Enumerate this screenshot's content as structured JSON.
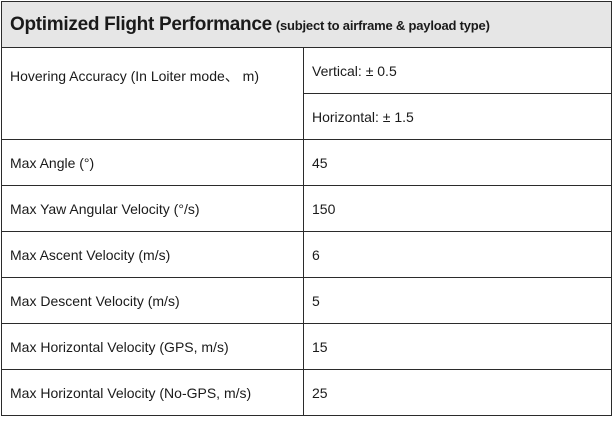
{
  "header": {
    "title": "Optimized Flight Performance",
    "subtitle": "(subject to airframe & payload type)"
  },
  "hovering": {
    "label": "Hovering Accuracy (In Loiter mode、 m)",
    "vertical": "Vertical:  ±  0.5",
    "horizontal": "Horizontal:  ±  1.5"
  },
  "rows": [
    {
      "label": "Max Angle (°)",
      "value": "45"
    },
    {
      "label": "Max Yaw Angular Velocity (°/s)",
      "value": "150"
    },
    {
      "label": "Max Ascent Velocity (m/s)",
      "value": "6"
    },
    {
      "label": "Max Descent Velocity (m/s)",
      "value": "5"
    },
    {
      "label": "Max Horizontal Velocity (GPS, m/s)",
      "value": "15"
    },
    {
      "label": "Max Horizontal Velocity (No-GPS, m/s)",
      "value": "25"
    }
  ]
}
